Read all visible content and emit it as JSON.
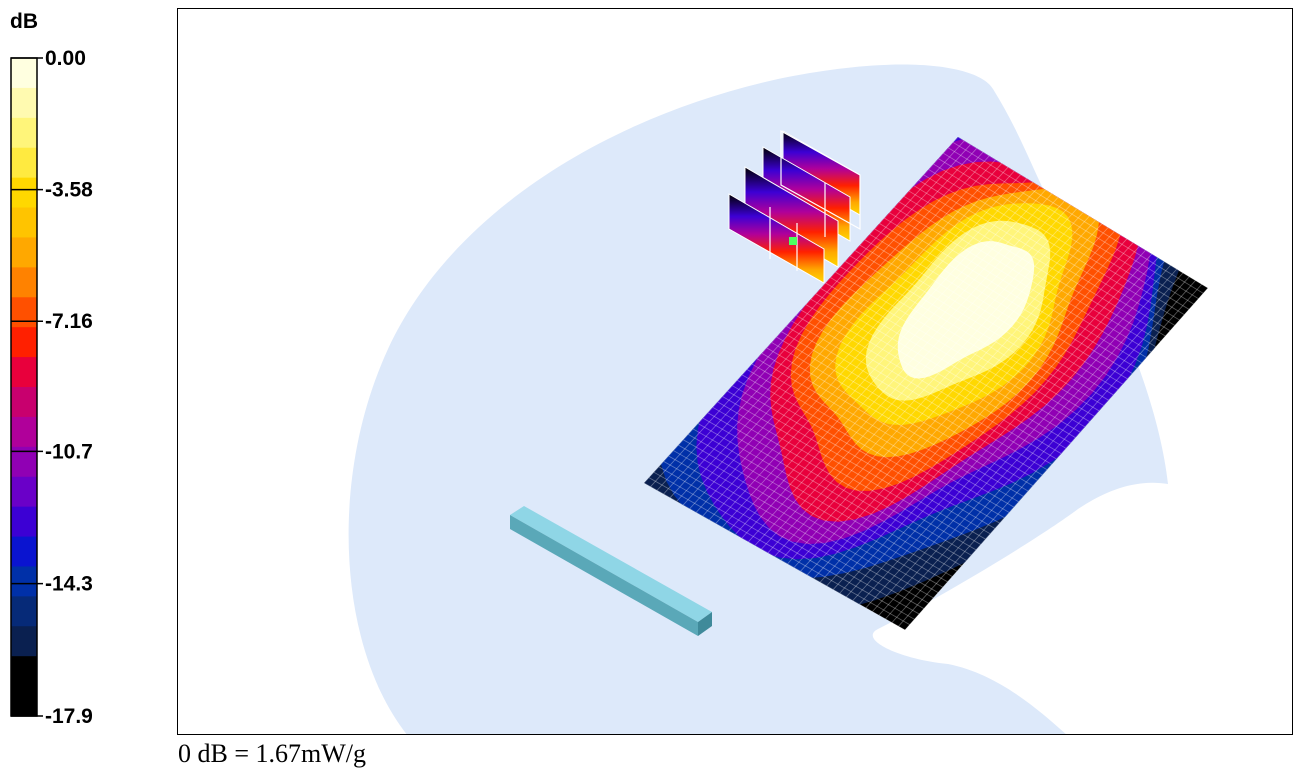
{
  "reference_note": "0 dB = 1.67mW/g",
  "chart_data": {
    "type": "heatmap",
    "title": "",
    "xlabel": "",
    "ylabel": "",
    "colorbar": {
      "unit_label": "dB",
      "range": [
        -17.9,
        0.0
      ],
      "tick_values": [
        0.0,
        -3.58,
        -7.16,
        -10.7,
        -14.3,
        -17.9
      ],
      "tick_labels": [
        "0.00",
        "-3.58",
        "-7.16",
        "-10.7",
        "-14.3",
        "-17.9"
      ],
      "colors_top_to_bottom": [
        "#ffffe0",
        "#fffab0",
        "#fff57a",
        "#ffea40",
        "#ffd800",
        "#ffc400",
        "#ffa800",
        "#ff8200",
        "#ff5000",
        "#ff2000",
        "#e8003c",
        "#c8006e",
        "#b0009a",
        "#9000b4",
        "#6a00c8",
        "#3c00d4",
        "#0a14d0",
        "#0030a8",
        "#062a78",
        "#0a2050",
        "#000000",
        "#000000"
      ]
    },
    "field_levels_db": [
      -17.9,
      -16.1,
      -14.3,
      -12.5,
      -10.7,
      -8.9,
      -7.16,
      -5.37,
      -3.58,
      -1.79
    ],
    "peak_db": 0.0,
    "background_color": "#dde9fa",
    "grid_color": "#ffffff",
    "accessory_color": "#8fd6e6"
  }
}
